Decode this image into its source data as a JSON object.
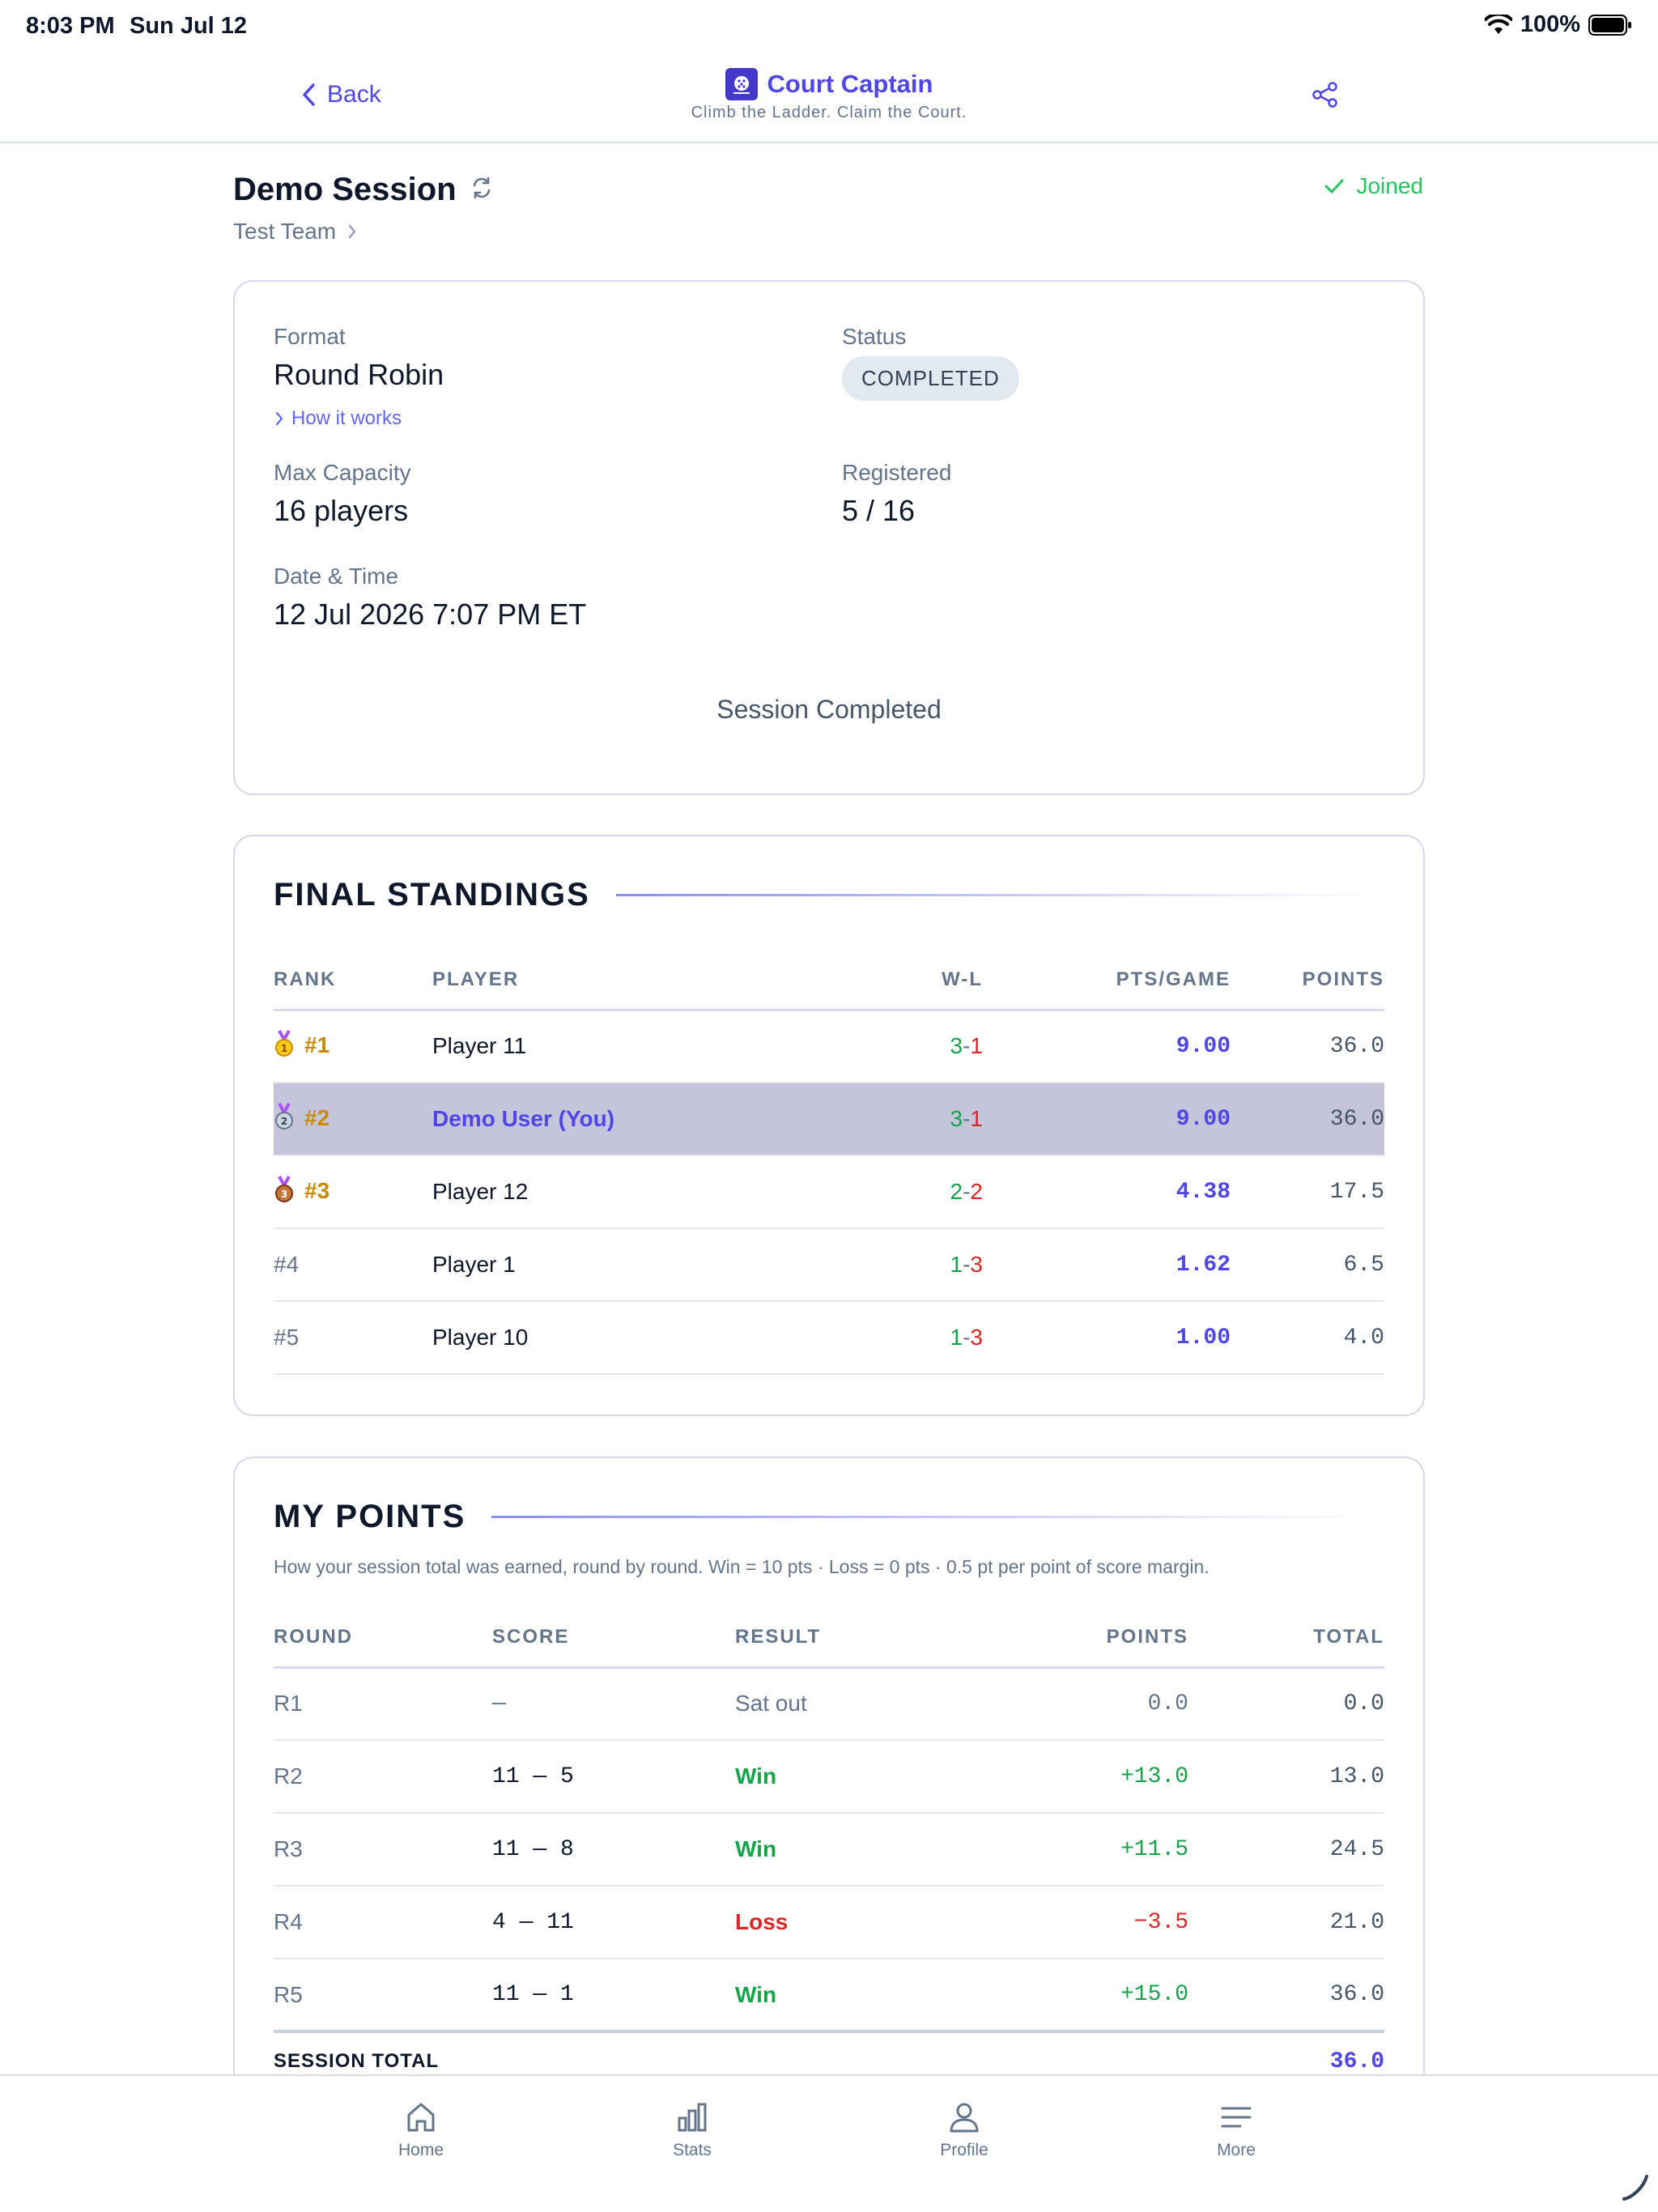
{
  "status_bar": {
    "time": "8:03 PM",
    "date": "Sun Jul 12",
    "battery": "100%"
  },
  "header": {
    "back_label": "Back",
    "app_title": "Court Captain",
    "tagline": "Climb the Ladder. Claim the Court."
  },
  "session": {
    "title": "Demo Session",
    "team": "Test Team",
    "joined_label": "Joined"
  },
  "details": {
    "format_label": "Format",
    "format_value": "Round Robin",
    "how_it_works": "How it works",
    "status_label": "Status",
    "status_value": "COMPLETED",
    "capacity_label": "Max Capacity",
    "capacity_value": "16 players",
    "registered_label": "Registered",
    "registered_value": "5 / 16",
    "datetime_label": "Date & Time",
    "datetime_value": "12 Jul 2026 7:07 PM ET",
    "completed_message": "Session Completed"
  },
  "standings": {
    "title": "FINAL STANDINGS",
    "headers": {
      "rank": "RANK",
      "player": "PLAYER",
      "wl": "W-L",
      "ppg": "PTS/GAME",
      "points": "POINTS"
    },
    "rows": [
      {
        "rank": "#1",
        "player": "Player 11",
        "wins": "3",
        "losses": "1",
        "ppg": "9.00",
        "points": "36.0"
      },
      {
        "rank": "#2",
        "player": "Demo User (You)",
        "wins": "3",
        "losses": "1",
        "ppg": "9.00",
        "points": "36.0"
      },
      {
        "rank": "#3",
        "player": "Player 12",
        "wins": "2",
        "losses": "2",
        "ppg": "4.38",
        "points": "17.5"
      },
      {
        "rank": "#4",
        "player": "Player 1",
        "wins": "1",
        "losses": "3",
        "ppg": "1.62",
        "points": "6.5"
      },
      {
        "rank": "#5",
        "player": "Player 10",
        "wins": "1",
        "losses": "3",
        "ppg": "1.00",
        "points": "4.0"
      }
    ]
  },
  "my_points": {
    "title": "MY POINTS",
    "description": "How your session total was earned, round by round. Win = 10 pts · Loss = 0 pts · 0.5 pt per point of score margin.",
    "headers": {
      "round": "ROUND",
      "score": "SCORE",
      "result": "RESULT",
      "points": "POINTS",
      "total": "TOTAL"
    },
    "rows": [
      {
        "round": "R1",
        "score": "—",
        "result": "Sat out",
        "points": "0.0",
        "total": "0.0"
      },
      {
        "round": "R2",
        "score": "11 — 5",
        "result": "Win",
        "points": "+13.0",
        "total": "13.0"
      },
      {
        "round": "R3",
        "score": "11 — 8",
        "result": "Win",
        "points": "+11.5",
        "total": "24.5"
      },
      {
        "round": "R4",
        "score": "4 — 11",
        "result": "Loss",
        "points": "−3.5",
        "total": "21.0"
      },
      {
        "round": "R5",
        "score": "11 — 1",
        "result": "Win",
        "points": "+15.0",
        "total": "36.0"
      }
    ],
    "session_total_label": "SESSION TOTAL",
    "session_total_value": "36.0"
  },
  "tabs": {
    "home": "Home",
    "stats": "Stats",
    "profile": "Profile",
    "more": "More"
  },
  "colors": {
    "accent": "#4f46e5",
    "win": "#16a34a",
    "loss": "#dc2626",
    "joined": "#22c55e",
    "highlight_row": "#c4c5db"
  }
}
